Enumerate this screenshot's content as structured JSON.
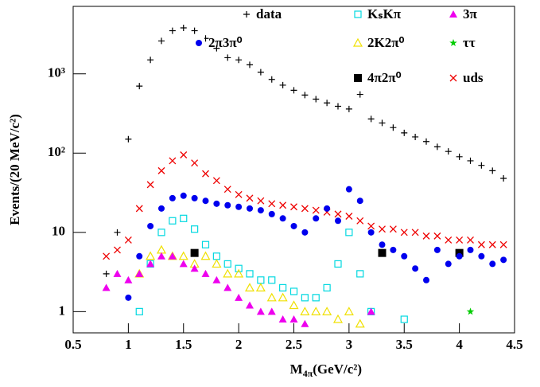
{
  "chart_data": {
    "type": "scatter",
    "y_label": "Events/(20 MeV/c²)",
    "x_label": {
      "main": "M",
      "sub": "4π",
      "unit": "(GeV/c²)"
    },
    "xlim": [
      0.5,
      4.5
    ],
    "xticks": [
      0.5,
      1,
      1.5,
      2,
      2.5,
      3,
      3.5,
      4,
      4.5
    ],
    "ylim": [
      0.54,
      7100
    ],
    "log_y": true,
    "yticks": [
      1,
      10,
      {
        "value": 100,
        "label": "10²"
      },
      {
        "value": 1000,
        "label": "10³"
      }
    ],
    "x": [
      0.8,
      0.9,
      1.0,
      1.1,
      1.2,
      1.3,
      1.4,
      1.5,
      1.6,
      1.7,
      1.8,
      1.9,
      2.0,
      2.1,
      2.2,
      2.3,
      2.4,
      2.5,
      2.6,
      2.7,
      2.8,
      2.9,
      3.0,
      3.1,
      3.2,
      3.3,
      3.4,
      3.5,
      3.6,
      3.7,
      3.8,
      3.9,
      4.0,
      4.1,
      4.2,
      4.3,
      4.4
    ],
    "series": [
      {
        "name": "data",
        "marker": "plus",
        "color": "#000000",
        "values": [
          3,
          10,
          150,
          700,
          1500,
          2600,
          3500,
          3800,
          3500,
          2800,
          2100,
          1600,
          1500,
          1300,
          1050,
          850,
          720,
          620,
          540,
          480,
          430,
          390,
          360,
          550,
          270,
          240,
          210,
          180,
          160,
          140,
          120,
          105,
          90,
          80,
          70,
          60,
          48
        ]
      },
      {
        "name": "2π3π⁰",
        "marker": "circle",
        "color": "#0000ee",
        "values": [
          null,
          null,
          1.5,
          5,
          12,
          20,
          27,
          29,
          27,
          25,
          23,
          22,
          21,
          20,
          19,
          17,
          15,
          12,
          10,
          15,
          20,
          14,
          35,
          25,
          10,
          7,
          6,
          5,
          3.5,
          2.5,
          6,
          4,
          5,
          6,
          5,
          4,
          4.5
        ]
      },
      {
        "name": "KₛKπ",
        "marker": "open-square",
        "color": "#00d8e0",
        "values": [
          null,
          null,
          null,
          1,
          4,
          10,
          14,
          15,
          11,
          7,
          5,
          4,
          3.5,
          3,
          2.5,
          2.5,
          2,
          1.8,
          1.5,
          1.5,
          2,
          4,
          10,
          3,
          1,
          null,
          null,
          0.8,
          null,
          null,
          null,
          null,
          null,
          null,
          null,
          null,
          null
        ]
      },
      {
        "name": "2K2π⁰",
        "marker": "open-triangle",
        "color": "#f0e000",
        "values": [
          null,
          null,
          null,
          3,
          5,
          6,
          5,
          5,
          4,
          5,
          4,
          3,
          3,
          2,
          2,
          1.5,
          1.5,
          1.2,
          1,
          1,
          1,
          0.8,
          1,
          0.7,
          null,
          null,
          null,
          null,
          null,
          null,
          null,
          null,
          null,
          null,
          null,
          null,
          null
        ]
      },
      {
        "name": "4π2π⁰",
        "marker": "square",
        "color": "#000000",
        "values": [
          null,
          null,
          null,
          null,
          null,
          null,
          null,
          null,
          5.5,
          null,
          null,
          null,
          null,
          null,
          null,
          null,
          null,
          null,
          null,
          null,
          null,
          null,
          null,
          null,
          null,
          5.5,
          null,
          null,
          null,
          null,
          null,
          null,
          5.5,
          null,
          null,
          null,
          null
        ]
      },
      {
        "name": "3π",
        "marker": "triangle",
        "color": "#ee00ee",
        "values": [
          2,
          3,
          2.5,
          3,
          4,
          5,
          5,
          4,
          3.5,
          3,
          2.5,
          2,
          1.5,
          1.2,
          1,
          1,
          0.8,
          0.8,
          0.7,
          null,
          null,
          null,
          null,
          null,
          1,
          null,
          null,
          null,
          null,
          null,
          null,
          null,
          null,
          null,
          null,
          null,
          null
        ]
      },
      {
        "name": "ττ",
        "marker": "star",
        "color": "#00cc00",
        "values": [
          null,
          null,
          null,
          null,
          null,
          null,
          null,
          null,
          null,
          null,
          null,
          null,
          null,
          null,
          null,
          null,
          null,
          null,
          null,
          null,
          null,
          null,
          null,
          null,
          null,
          null,
          null,
          null,
          null,
          null,
          null,
          null,
          null,
          1,
          null,
          null,
          null
        ]
      },
      {
        "name": "uds",
        "marker": "x",
        "color": "#ee0000",
        "values": [
          5,
          6,
          8,
          20,
          40,
          60,
          80,
          95,
          75,
          55,
          45,
          35,
          30,
          27,
          25,
          23,
          22,
          21,
          20,
          19,
          18,
          17,
          16,
          14,
          12,
          11,
          11,
          10,
          10,
          9,
          9,
          8,
          8,
          8,
          7,
          7,
          7
        ]
      }
    ]
  }
}
